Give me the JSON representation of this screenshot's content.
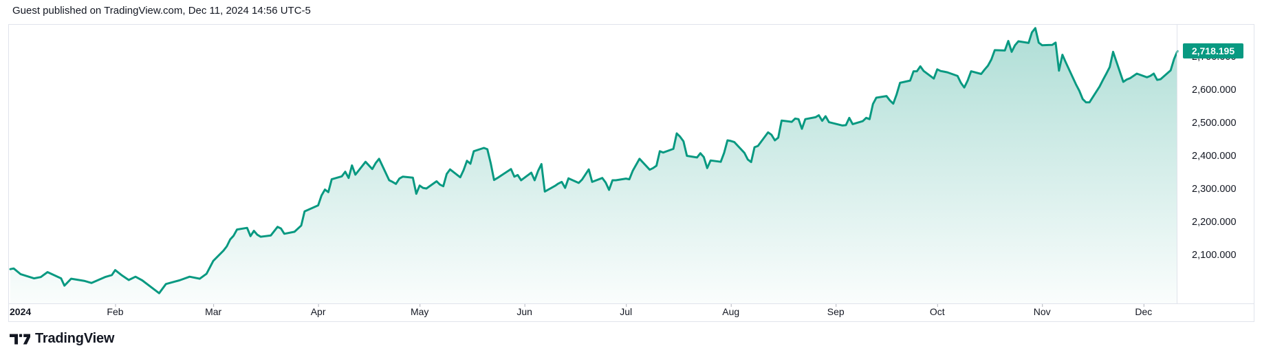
{
  "header": {
    "text": "Guest published on TradingView.com, Dec 11, 2024 14:56 UTC-5"
  },
  "footer": {
    "brand": "TradingView"
  },
  "colors": {
    "line": "#089981",
    "fill_top": "rgba(8,153,129,0.33)",
    "fill_bottom": "rgba(8,153,129,0.02)",
    "panel_border": "#e0e3eb",
    "axis_text": "#131722",
    "tick": "#b2b5be",
    "badge_bg": "#089981",
    "badge_text": "#ffffff"
  },
  "price_scale": {
    "badge": {
      "text": "2,718.195",
      "price": 2718.195
    },
    "labels": [
      {
        "text": "2,700.000",
        "price": 2700
      },
      {
        "text": "2,600.000",
        "price": 2600
      },
      {
        "text": "2,500.000",
        "price": 2500
      },
      {
        "text": "2,400.000",
        "price": 2400
      },
      {
        "text": "2,300.000",
        "price": 2300
      },
      {
        "text": "2,200.000",
        "price": 2200
      },
      {
        "text": "2,100.000",
        "price": 2100
      }
    ]
  },
  "time_scale": {
    "labels": [
      {
        "text": "2024",
        "day": 1,
        "bold": true,
        "align": "left"
      },
      {
        "text": "Feb",
        "day": 32
      },
      {
        "text": "Mar",
        "day": 61
      },
      {
        "text": "Apr",
        "day": 92
      },
      {
        "text": "May",
        "day": 122
      },
      {
        "text": "Jun",
        "day": 153
      },
      {
        "text": "Jul",
        "day": 183
      },
      {
        "text": "Aug",
        "day": 214
      },
      {
        "text": "Sep",
        "day": 245
      },
      {
        "text": "Oct",
        "day": 275
      },
      {
        "text": "Nov",
        "day": 306
      },
      {
        "text": "Dec",
        "day": 336
      }
    ]
  },
  "chart_data": {
    "type": "area",
    "x_unit": "day_of_year_2024",
    "x_range": [
      1,
      346
    ],
    "ylim": [
      1960,
      2810
    ],
    "y_ticks": [
      2100,
      2200,
      2300,
      2400,
      2500,
      2600,
      2700
    ],
    "grid": false,
    "legend": false,
    "last_value": 2718.195,
    "series": [
      {
        "name": "price",
        "points": [
          [
            1,
            2058
          ],
          [
            2,
            2060
          ],
          [
            4,
            2043
          ],
          [
            8,
            2030
          ],
          [
            10,
            2034
          ],
          [
            12,
            2049
          ],
          [
            16,
            2030
          ],
          [
            17,
            2008
          ],
          [
            19,
            2029
          ],
          [
            23,
            2022
          ],
          [
            25,
            2016
          ],
          [
            29,
            2034
          ],
          [
            31,
            2040
          ],
          [
            32,
            2055
          ],
          [
            34,
            2039
          ],
          [
            36,
            2025
          ],
          [
            38,
            2035
          ],
          [
            40,
            2024
          ],
          [
            44,
            1993
          ],
          [
            45,
            1985
          ],
          [
            47,
            2013
          ],
          [
            51,
            2024
          ],
          [
            54,
            2035
          ],
          [
            57,
            2029
          ],
          [
            59,
            2044
          ],
          [
            61,
            2083
          ],
          [
            64,
            2114
          ],
          [
            65,
            2127
          ],
          [
            66,
            2148
          ],
          [
            67,
            2159
          ],
          [
            68,
            2178
          ],
          [
            71,
            2183
          ],
          [
            72,
            2158
          ],
          [
            73,
            2174
          ],
          [
            74,
            2162
          ],
          [
            75,
            2156
          ],
          [
            78,
            2160
          ],
          [
            80,
            2186
          ],
          [
            81,
            2181
          ],
          [
            82,
            2165
          ],
          [
            85,
            2171
          ],
          [
            87,
            2190
          ],
          [
            88,
            2233
          ],
          [
            92,
            2251
          ],
          [
            93,
            2281
          ],
          [
            94,
            2299
          ],
          [
            95,
            2291
          ],
          [
            96,
            2330
          ],
          [
            99,
            2339
          ],
          [
            100,
            2353
          ],
          [
            101,
            2334
          ],
          [
            102,
            2372
          ],
          [
            103,
            2344
          ],
          [
            106,
            2383
          ],
          [
            108,
            2361
          ],
          [
            109,
            2379
          ],
          [
            110,
            2392
          ],
          [
            113,
            2327
          ],
          [
            114,
            2322
          ],
          [
            115,
            2316
          ],
          [
            116,
            2332
          ],
          [
            117,
            2338
          ],
          [
            120,
            2335
          ],
          [
            121,
            2286
          ],
          [
            122,
            2311
          ],
          [
            123,
            2304
          ],
          [
            124,
            2302
          ],
          [
            127,
            2324
          ],
          [
            128,
            2314
          ],
          [
            129,
            2309
          ],
          [
            130,
            2346
          ],
          [
            131,
            2360
          ],
          [
            134,
            2336
          ],
          [
            135,
            2358
          ],
          [
            136,
            2386
          ],
          [
            137,
            2377
          ],
          [
            138,
            2415
          ],
          [
            141,
            2425
          ],
          [
            142,
            2421
          ],
          [
            143,
            2379
          ],
          [
            144,
            2328
          ],
          [
            145,
            2334
          ],
          [
            149,
            2361
          ],
          [
            150,
            2338
          ],
          [
            151,
            2343
          ],
          [
            152,
            2327
          ],
          [
            155,
            2350
          ],
          [
            156,
            2327
          ],
          [
            157,
            2355
          ],
          [
            158,
            2376
          ],
          [
            159,
            2293
          ],
          [
            162,
            2310
          ],
          [
            163,
            2317
          ],
          [
            164,
            2322
          ],
          [
            165,
            2304
          ],
          [
            166,
            2333
          ],
          [
            169,
            2319
          ],
          [
            170,
            2329
          ],
          [
            172,
            2360
          ],
          [
            173,
            2322
          ],
          [
            176,
            2334
          ],
          [
            177,
            2320
          ],
          [
            178,
            2298
          ],
          [
            179,
            2327
          ],
          [
            180,
            2327
          ],
          [
            183,
            2332
          ],
          [
            184,
            2330
          ],
          [
            185,
            2356
          ],
          [
            187,
            2392
          ],
          [
            190,
            2359
          ],
          [
            191,
            2364
          ],
          [
            192,
            2371
          ],
          [
            193,
            2415
          ],
          [
            194,
            2411
          ],
          [
            197,
            2422
          ],
          [
            198,
            2469
          ],
          [
            199,
            2459
          ],
          [
            200,
            2445
          ],
          [
            201,
            2401
          ],
          [
            204,
            2396
          ],
          [
            205,
            2409
          ],
          [
            206,
            2397
          ],
          [
            207,
            2364
          ],
          [
            208,
            2387
          ],
          [
            211,
            2383
          ],
          [
            212,
            2410
          ],
          [
            213,
            2448
          ],
          [
            214,
            2446
          ],
          [
            215,
            2443
          ],
          [
            218,
            2410
          ],
          [
            219,
            2390
          ],
          [
            220,
            2382
          ],
          [
            221,
            2427
          ],
          [
            222,
            2431
          ],
          [
            225,
            2472
          ],
          [
            226,
            2465
          ],
          [
            227,
            2448
          ],
          [
            228,
            2456
          ],
          [
            229,
            2508
          ],
          [
            232,
            2504
          ],
          [
            233,
            2514
          ],
          [
            234,
            2512
          ],
          [
            235,
            2483
          ],
          [
            236,
            2512
          ],
          [
            239,
            2518
          ],
          [
            240,
            2524
          ],
          [
            241,
            2507
          ],
          [
            242,
            2521
          ],
          [
            243,
            2503
          ],
          [
            247,
            2493
          ],
          [
            248,
            2494
          ],
          [
            249,
            2516
          ],
          [
            250,
            2497
          ],
          [
            253,
            2506
          ],
          [
            254,
            2516
          ],
          [
            255,
            2512
          ],
          [
            256,
            2558
          ],
          [
            257,
            2577
          ],
          [
            260,
            2582
          ],
          [
            261,
            2569
          ],
          [
            262,
            2559
          ],
          [
            263,
            2587
          ],
          [
            264,
            2622
          ],
          [
            267,
            2629
          ],
          [
            268,
            2657
          ],
          [
            269,
            2657
          ],
          [
            270,
            2672
          ],
          [
            271,
            2658
          ],
          [
            274,
            2635
          ],
          [
            275,
            2663
          ],
          [
            276,
            2658
          ],
          [
            277,
            2656
          ],
          [
            278,
            2654
          ],
          [
            281,
            2643
          ],
          [
            282,
            2622
          ],
          [
            283,
            2608
          ],
          [
            284,
            2629
          ],
          [
            285,
            2657
          ],
          [
            288,
            2649
          ],
          [
            289,
            2662
          ],
          [
            290,
            2674
          ],
          [
            291,
            2693
          ],
          [
            292,
            2721
          ],
          [
            295,
            2720
          ],
          [
            296,
            2749
          ],
          [
            297,
            2716
          ],
          [
            298,
            2736
          ],
          [
            299,
            2748
          ],
          [
            302,
            2743
          ],
          [
            303,
            2775
          ],
          [
            304,
            2788
          ],
          [
            305,
            2744
          ],
          [
            306,
            2736
          ],
          [
            309,
            2737
          ],
          [
            310,
            2744
          ],
          [
            311,
            2659
          ],
          [
            312,
            2707
          ],
          [
            313,
            2684
          ],
          [
            316,
            2618
          ],
          [
            317,
            2598
          ],
          [
            318,
            2573
          ],
          [
            319,
            2563
          ],
          [
            320,
            2563
          ],
          [
            323,
            2611
          ],
          [
            324,
            2631
          ],
          [
            325,
            2650
          ],
          [
            326,
            2670
          ],
          [
            327,
            2716
          ],
          [
            330,
            2625
          ],
          [
            331,
            2632
          ],
          [
            332,
            2636
          ],
          [
            334,
            2650
          ],
          [
            337,
            2639
          ],
          [
            338,
            2643
          ],
          [
            339,
            2650
          ],
          [
            340,
            2631
          ],
          [
            341,
            2633
          ],
          [
            344,
            2660
          ],
          [
            345,
            2694
          ],
          [
            346,
            2718.195
          ]
        ]
      }
    ]
  }
}
